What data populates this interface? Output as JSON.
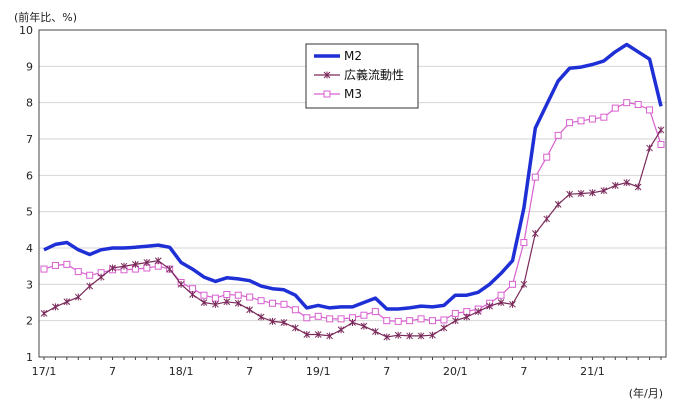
{
  "chart_data": {
    "type": "line",
    "ylabel": "(前年比、%)",
    "xunit": "(年/月)",
    "ylim": [
      1,
      10
    ],
    "yticks": [
      1,
      2,
      3,
      4,
      5,
      6,
      7,
      8,
      9,
      10
    ],
    "grid": "horizontal",
    "legend_position": "top-center",
    "x_tick_labels": [
      {
        "index": 0,
        "label": "17/1"
      },
      {
        "index": 6,
        "label": "7"
      },
      {
        "index": 12,
        "label": "18/1"
      },
      {
        "index": 18,
        "label": "7"
      },
      {
        "index": 24,
        "label": "19/1"
      },
      {
        "index": 30,
        "label": "7"
      },
      {
        "index": 36,
        "label": "20/1"
      },
      {
        "index": 42,
        "label": "7"
      },
      {
        "index": 48,
        "label": "21/1"
      }
    ],
    "series": [
      {
        "name": "M2",
        "color": "#1f2fd6",
        "marker": "none",
        "values": [
          3.95,
          4.1,
          4.15,
          3.95,
          3.82,
          3.95,
          4.0,
          4.0,
          4.02,
          4.05,
          4.08,
          4.02,
          3.6,
          3.42,
          3.2,
          3.08,
          3.18,
          3.15,
          3.1,
          2.95,
          2.88,
          2.85,
          2.7,
          2.35,
          2.42,
          2.35,
          2.38,
          2.38,
          2.5,
          2.62,
          2.32,
          2.32,
          2.35,
          2.4,
          2.38,
          2.42,
          2.7,
          2.7,
          2.78,
          3.0,
          3.3,
          3.65,
          5.1,
          7.3,
          7.95,
          8.6,
          8.95,
          8.98,
          9.05,
          9.15,
          9.4,
          9.6,
          9.4,
          9.2,
          7.9
        ]
      },
      {
        "name": "広義流動性",
        "color": "#7a2a5a",
        "marker": "star",
        "values": [
          2.2,
          2.38,
          2.52,
          2.65,
          2.95,
          3.2,
          3.45,
          3.5,
          3.55,
          3.6,
          3.65,
          3.42,
          3.0,
          2.72,
          2.5,
          2.45,
          2.52,
          2.48,
          2.3,
          2.1,
          1.98,
          1.95,
          1.8,
          1.62,
          1.62,
          1.58,
          1.75,
          1.95,
          1.85,
          1.7,
          1.55,
          1.6,
          1.58,
          1.58,
          1.6,
          1.8,
          2.0,
          2.1,
          2.25,
          2.4,
          2.5,
          2.45,
          3.0,
          4.4,
          4.8,
          5.2,
          5.48,
          5.5,
          5.52,
          5.58,
          5.72,
          5.8,
          5.68,
          6.75,
          7.25
        ]
      },
      {
        "name": "M3",
        "color": "#d860d0",
        "marker": "square",
        "values": [
          3.42,
          3.52,
          3.55,
          3.35,
          3.25,
          3.32,
          3.4,
          3.4,
          3.42,
          3.45,
          3.5,
          3.42,
          3.05,
          2.88,
          2.7,
          2.62,
          2.72,
          2.7,
          2.65,
          2.55,
          2.48,
          2.45,
          2.3,
          2.08,
          2.12,
          2.05,
          2.05,
          2.08,
          2.15,
          2.25,
          2.0,
          1.98,
          2.0,
          2.05,
          2.0,
          2.02,
          2.2,
          2.25,
          2.32,
          2.48,
          2.7,
          3.0,
          4.15,
          5.95,
          6.5,
          7.1,
          7.45,
          7.5,
          7.55,
          7.6,
          7.85,
          8.0,
          7.95,
          7.8,
          6.85
        ]
      }
    ]
  }
}
